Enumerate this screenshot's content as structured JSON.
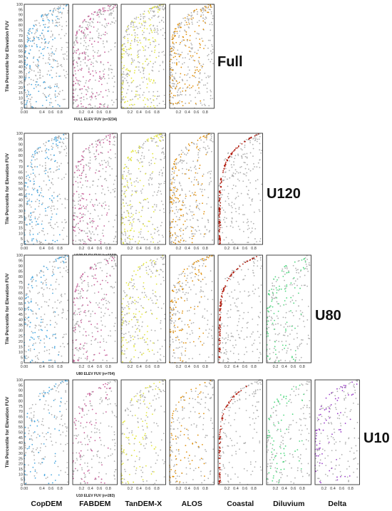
{
  "chart_data": {
    "type": "scatter",
    "y_axis_label": "Tile Percentile for Elevation FUV",
    "y_ticks": [
      "0",
      "5",
      "10",
      "15",
      "20",
      "25",
      "30",
      "35",
      "40",
      "45",
      "50",
      "55",
      "60",
      "65",
      "70",
      "75",
      "80",
      "85",
      "90",
      "95",
      "100"
    ],
    "x_ticks": [
      "0.00",
      "0.2",
      "0.4",
      "0.6",
      "0.8"
    ],
    "xlim": [
      0,
      1
    ],
    "ylim": [
      0,
      100
    ],
    "reference_color": "#b0b0b0",
    "dem_columns": [
      {
        "label": "CopDEM",
        "color": "#4aa8e0"
      },
      {
        "label": "FABDEM",
        "color": "#c8609a"
      },
      {
        "label": "TanDEM-X",
        "color": "#e4e640"
      },
      {
        "label": "ALOS",
        "color": "#e0900c"
      },
      {
        "label": "Coastal",
        "color": "#b0180a"
      },
      {
        "label": "Diluvium",
        "color": "#50d880"
      },
      {
        "label": "Delta",
        "color": "#9a3cc8"
      }
    ],
    "groups": [
      {
        "label": "Full",
        "x_axis_label": "FULL ELEV FUV  (n=3234)",
        "panels": 4
      },
      {
        "label": "U120",
        "x_axis_label": "U120 ELEV FUV  (n=1569)",
        "panels": 5
      },
      {
        "label": "U80",
        "x_axis_label": "U80 ELEV FUV  (n=704)",
        "panels": 6
      },
      {
        "label": "U10",
        "x_axis_label": "U10 ELEV FUV  (n=283)",
        "panels": 7
      }
    ]
  }
}
